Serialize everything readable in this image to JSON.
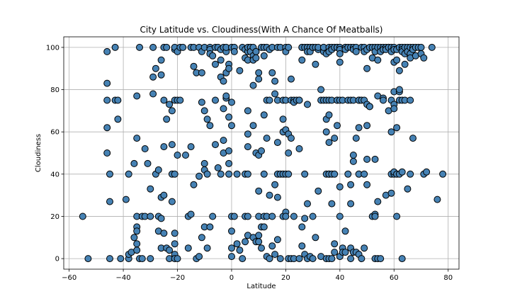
{
  "chart_data": {
    "type": "scatter",
    "title": "City Latitude vs. Cloudiness(With A Chance Of Meatballs)",
    "xlabel": "Latitude",
    "ylabel": "Cloudiness",
    "xlim": [
      -62,
      84
    ],
    "ylim": [
      -5,
      105
    ],
    "xticks": [
      -60,
      -40,
      -20,
      0,
      20,
      40,
      60,
      80
    ],
    "yticks": [
      0,
      20,
      40,
      60,
      80,
      100
    ],
    "grid": true,
    "marker_color": "#4682b4",
    "marker_edge_color": "#000000",
    "points": [
      [
        -55,
        20
      ],
      [
        -53,
        0
      ],
      [
        -46,
        75
      ],
      [
        -46,
        62
      ],
      [
        -46,
        50
      ],
      [
        -46,
        83
      ],
      [
        -46,
        98
      ],
      [
        -45,
        40
      ],
      [
        -45,
        27
      ],
      [
        -45,
        0
      ],
      [
        -43,
        75
      ],
      [
        -43,
        100
      ],
      [
        -42,
        75
      ],
      [
        -42,
        66
      ],
      [
        -41,
        0
      ],
      [
        -39,
        28
      ],
      [
        -38,
        40
      ],
      [
        -38,
        0
      ],
      [
        -38,
        2
      ],
      [
        -37,
        3
      ],
      [
        -36,
        45
      ],
      [
        -36,
        10
      ],
      [
        -35,
        77
      ],
      [
        -35,
        57
      ],
      [
        -35,
        20
      ],
      [
        -35,
        15
      ],
      [
        -35,
        13
      ],
      [
        -35,
        7
      ],
      [
        -35,
        4
      ],
      [
        -34,
        100
      ],
      [
        -34,
        0
      ],
      [
        -33,
        0
      ],
      [
        -33,
        20
      ],
      [
        -32,
        52
      ],
      [
        -32,
        20
      ],
      [
        -31,
        45
      ],
      [
        -30,
        0
      ],
      [
        -30,
        20
      ],
      [
        -30,
        33
      ],
      [
        -29,
        100
      ],
      [
        -29,
        78
      ],
      [
        -29,
        86
      ],
      [
        -28,
        90
      ],
      [
        -28,
        40
      ],
      [
        -27,
        20
      ],
      [
        -27,
        42
      ],
      [
        -27,
        13
      ],
      [
        -26,
        87
      ],
      [
        -26,
        94
      ],
      [
        -26,
        29
      ],
      [
        -26,
        19
      ],
      [
        -26,
        5
      ],
      [
        -25,
        100
      ],
      [
        -25,
        75
      ],
      [
        -25,
        53
      ],
      [
        -25,
        30
      ],
      [
        -25,
        12
      ],
      [
        -24,
        100
      ],
      [
        -24,
        66
      ],
      [
        -24,
        5
      ],
      [
        -23,
        73
      ],
      [
        -23,
        0
      ],
      [
        -23,
        4
      ],
      [
        -22,
        40
      ],
      [
        -22,
        70
      ],
      [
        -22,
        54
      ],
      [
        -22,
        27
      ],
      [
        -21,
        99
      ],
      [
        -21,
        75
      ],
      [
        -21,
        100
      ],
      [
        -21,
        40
      ],
      [
        -21,
        12
      ],
      [
        -21,
        7
      ],
      [
        -21,
        2
      ],
      [
        -21,
        0
      ],
      [
        -20,
        98
      ],
      [
        -20,
        75
      ],
      [
        -20,
        49
      ],
      [
        -20,
        0
      ],
      [
        -19,
        100
      ],
      [
        -19,
        75
      ],
      [
        -18,
        100
      ],
      [
        -17,
        49
      ],
      [
        -16,
        5
      ],
      [
        -16,
        20
      ],
      [
        -15,
        21
      ],
      [
        -15,
        53
      ],
      [
        -15,
        100
      ],
      [
        -14,
        91
      ],
      [
        -14,
        35
      ],
      [
        -14,
        100
      ],
      [
        -13,
        88
      ],
      [
        -13,
        0
      ],
      [
        -12,
        39
      ],
      [
        -12,
        1
      ],
      [
        -12,
        100
      ],
      [
        -11,
        98
      ],
      [
        -11,
        88
      ],
      [
        -11,
        10
      ],
      [
        -11,
        74
      ],
      [
        -10,
        100
      ],
      [
        -10,
        70
      ],
      [
        -10,
        45
      ],
      [
        -10,
        42
      ],
      [
        -10,
        15
      ],
      [
        -9,
        5
      ],
      [
        -9,
        66
      ],
      [
        -9,
        40
      ],
      [
        -8,
        100
      ],
      [
        -8,
        99
      ],
      [
        -8,
        97
      ],
      [
        -8,
        15
      ],
      [
        -8,
        63
      ],
      [
        -7,
        96
      ],
      [
        -7,
        20
      ],
      [
        -6,
        54
      ],
      [
        -6,
        75
      ],
      [
        -6,
        100
      ],
      [
        -6,
        92
      ],
      [
        -5,
        100
      ],
      [
        -5,
        43
      ],
      [
        -4,
        99
      ],
      [
        -4,
        86
      ],
      [
        -4,
        94
      ],
      [
        -4,
        40
      ],
      [
        -3,
        71
      ],
      [
        -3,
        100
      ],
      [
        -3,
        50
      ],
      [
        -3,
        84
      ],
      [
        -3,
        56
      ],
      [
        -2,
        88
      ],
      [
        -2,
        98
      ],
      [
        -2,
        76
      ],
      [
        -2,
        77
      ],
      [
        -2,
        100
      ],
      [
        -1,
        92
      ],
      [
        -1,
        90
      ],
      [
        -1,
        67
      ],
      [
        -1,
        45
      ],
      [
        -1,
        40
      ],
      [
        -1,
        51
      ],
      [
        0,
        20
      ],
      [
        0,
        13
      ],
      [
        0,
        5
      ],
      [
        0,
        74
      ],
      [
        0,
        63
      ],
      [
        0,
        1
      ],
      [
        0,
        100
      ],
      [
        1,
        100
      ],
      [
        1,
        98
      ],
      [
        1,
        20
      ],
      [
        2,
        7
      ],
      [
        2,
        40
      ],
      [
        3,
        89
      ],
      [
        3,
        4
      ],
      [
        4,
        0
      ],
      [
        4,
        100
      ],
      [
        5,
        99
      ],
      [
        5,
        95
      ],
      [
        5,
        40
      ],
      [
        5,
        20
      ],
      [
        5,
        8
      ],
      [
        6,
        98
      ],
      [
        6,
        100
      ],
      [
        6,
        94
      ],
      [
        6,
        70
      ],
      [
        6,
        59
      ],
      [
        6,
        53
      ],
      [
        6,
        40
      ],
      [
        6,
        20
      ],
      [
        6,
        11
      ],
      [
        7,
        100
      ],
      [
        7,
        100
      ],
      [
        7,
        98
      ],
      [
        8,
        100
      ],
      [
        8,
        82
      ],
      [
        8,
        63
      ],
      [
        8,
        96
      ],
      [
        8,
        94
      ],
      [
        8,
        10
      ],
      [
        9,
        98
      ],
      [
        9,
        98
      ],
      [
        9,
        95
      ],
      [
        9,
        8
      ],
      [
        9,
        50
      ],
      [
        10,
        85
      ],
      [
        10,
        88
      ],
      [
        10,
        32
      ],
      [
        10,
        20
      ],
      [
        10,
        11
      ],
      [
        10,
        8
      ],
      [
        10,
        49
      ],
      [
        11,
        100
      ],
      [
        11,
        5
      ],
      [
        11,
        15
      ],
      [
        11,
        51
      ],
      [
        12,
        96
      ],
      [
        12,
        100
      ],
      [
        12,
        68
      ],
      [
        12,
        40
      ],
      [
        12,
        20
      ],
      [
        12,
        15
      ],
      [
        13,
        100
      ],
      [
        13,
        75
      ],
      [
        13,
        57
      ],
      [
        13,
        20
      ],
      [
        13,
        1
      ],
      [
        14,
        99
      ],
      [
        14,
        75
      ],
      [
        14,
        30
      ],
      [
        14,
        0
      ],
      [
        15,
        100
      ],
      [
        15,
        88
      ],
      [
        15,
        20
      ],
      [
        15,
        6
      ],
      [
        16,
        84
      ],
      [
        16,
        78
      ],
      [
        16,
        35
      ],
      [
        16,
        2
      ],
      [
        17,
        100
      ],
      [
        17,
        55
      ],
      [
        17,
        75
      ],
      [
        17,
        40
      ],
      [
        17,
        29
      ],
      [
        17,
        9
      ],
      [
        18,
        100
      ],
      [
        18,
        0
      ],
      [
        18,
        40
      ],
      [
        19,
        75
      ],
      [
        19,
        66
      ],
      [
        19,
        60
      ],
      [
        19,
        40
      ],
      [
        19,
        20
      ],
      [
        20,
        100
      ],
      [
        20,
        98
      ],
      [
        20,
        75
      ],
      [
        20,
        61
      ],
      [
        20,
        40
      ],
      [
        20,
        22
      ],
      [
        20,
        20
      ],
      [
        21,
        59
      ],
      [
        21,
        50
      ],
      [
        21,
        40
      ],
      [
        21,
        0
      ],
      [
        21,
        100
      ],
      [
        22,
        85
      ],
      [
        22,
        57
      ],
      [
        22,
        75
      ],
      [
        22,
        0
      ],
      [
        23,
        75
      ],
      [
        23,
        74
      ],
      [
        23,
        0
      ],
      [
        23,
        20
      ],
      [
        24,
        75
      ],
      [
        25,
        75
      ],
      [
        25,
        75
      ],
      [
        25,
        52
      ],
      [
        25,
        0
      ],
      [
        26,
        100
      ],
      [
        26,
        100
      ],
      [
        26,
        94
      ],
      [
        26,
        15
      ],
      [
        26,
        6
      ],
      [
        27,
        100
      ],
      [
        27,
        19
      ],
      [
        27,
        2
      ],
      [
        27,
        40
      ],
      [
        28,
        100
      ],
      [
        28,
        100
      ],
      [
        28,
        98
      ],
      [
        28,
        73
      ],
      [
        28,
        26
      ],
      [
        28,
        0
      ],
      [
        29,
        100
      ],
      [
        29,
        98
      ],
      [
        29,
        1
      ],
      [
        30,
        100
      ],
      [
        30,
        100
      ],
      [
        30,
        20
      ],
      [
        30,
        0
      ],
      [
        31,
        100
      ],
      [
        31,
        92
      ],
      [
        31,
        10
      ],
      [
        32,
        99
      ],
      [
        32,
        32
      ],
      [
        32,
        100
      ],
      [
        33,
        80
      ],
      [
        33,
        75
      ],
      [
        33,
        1
      ],
      [
        34,
        100
      ],
      [
        34,
        98
      ],
      [
        34,
        100
      ],
      [
        34,
        75
      ],
      [
        35,
        97
      ],
      [
        35,
        75
      ],
      [
        35,
        66
      ],
      [
        35,
        60
      ],
      [
        35,
        40
      ],
      [
        35,
        0
      ],
      [
        36,
        100
      ],
      [
        36,
        98
      ],
      [
        36,
        75
      ],
      [
        36,
        68
      ],
      [
        36,
        55
      ],
      [
        36,
        40
      ],
      [
        36,
        40
      ],
      [
        36,
        0
      ],
      [
        37,
        100
      ],
      [
        37,
        99
      ],
      [
        37,
        75
      ],
      [
        37,
        40
      ],
      [
        37,
        26
      ],
      [
        37,
        0
      ],
      [
        38,
        100
      ],
      [
        38,
        57
      ],
      [
        38,
        40
      ],
      [
        38,
        7
      ],
      [
        38,
        3
      ],
      [
        39,
        100
      ],
      [
        39,
        75
      ],
      [
        39,
        100
      ],
      [
        39,
        75
      ],
      [
        39,
        63
      ],
      [
        40,
        100
      ],
      [
        40,
        99
      ],
      [
        40,
        97
      ],
      [
        40,
        93
      ],
      [
        40,
        75
      ],
      [
        40,
        34
      ],
      [
        40,
        20
      ],
      [
        40,
        1
      ],
      [
        41,
        75
      ],
      [
        41,
        5
      ],
      [
        41,
        3
      ],
      [
        42,
        100
      ],
      [
        42,
        100
      ],
      [
        42,
        99
      ],
      [
        42,
        13
      ],
      [
        42,
        3
      ],
      [
        43,
        75
      ],
      [
        43,
        40
      ],
      [
        43,
        100
      ],
      [
        44,
        100
      ],
      [
        44,
        75
      ],
      [
        44,
        35
      ],
      [
        44,
        26
      ],
      [
        44,
        5
      ],
      [
        44,
        0
      ],
      [
        45,
        100
      ],
      [
        45,
        99
      ],
      [
        45,
        75
      ],
      [
        45,
        46
      ],
      [
        45,
        49
      ],
      [
        45,
        3
      ],
      [
        46,
        100
      ],
      [
        46,
        98
      ],
      [
        46,
        57
      ],
      [
        46,
        3
      ],
      [
        47,
        75
      ],
      [
        47,
        75
      ],
      [
        47,
        62
      ],
      [
        47,
        40
      ],
      [
        47,
        2
      ],
      [
        48,
        100
      ],
      [
        48,
        75
      ],
      [
        48,
        0
      ],
      [
        49,
        75
      ],
      [
        49,
        100
      ],
      [
        49,
        98
      ],
      [
        49,
        40
      ],
      [
        49,
        5
      ],
      [
        50,
        99
      ],
      [
        50,
        90
      ],
      [
        50,
        73
      ],
      [
        50,
        63
      ],
      [
        50,
        35
      ],
      [
        50,
        47
      ],
      [
        51,
        100
      ],
      [
        51,
        72
      ],
      [
        51,
        72
      ],
      [
        52,
        95
      ],
      [
        52,
        100
      ],
      [
        52,
        20
      ],
      [
        53,
        100
      ],
      [
        53,
        98
      ],
      [
        53,
        47
      ],
      [
        53,
        21
      ],
      [
        53,
        20
      ],
      [
        53,
        0
      ],
      [
        54,
        100
      ],
      [
        54,
        94
      ],
      [
        54,
        77
      ],
      [
        54,
        27
      ],
      [
        54,
        0
      ],
      [
        55,
        100
      ],
      [
        55,
        98
      ],
      [
        55,
        0
      ],
      [
        56,
        100
      ],
      [
        56,
        99
      ],
      [
        56,
        76
      ],
      [
        56,
        75
      ],
      [
        57,
        100
      ],
      [
        57,
        99
      ],
      [
        57,
        30
      ],
      [
        58,
        100
      ],
      [
        58,
        70
      ],
      [
        58,
        100
      ],
      [
        59,
        100
      ],
      [
        59,
        98
      ],
      [
        59,
        75
      ],
      [
        59,
        60
      ],
      [
        59,
        40
      ],
      [
        59,
        31
      ],
      [
        60,
        100
      ],
      [
        60,
        99
      ],
      [
        60,
        93
      ],
      [
        60,
        79
      ],
      [
        60,
        73
      ],
      [
        60,
        71
      ],
      [
        60,
        40
      ],
      [
        60,
        41
      ],
      [
        61,
        99
      ],
      [
        61,
        94
      ],
      [
        61,
        62
      ],
      [
        61,
        40
      ],
      [
        61,
        20
      ],
      [
        62,
        100
      ],
      [
        62,
        89
      ],
      [
        62,
        79
      ],
      [
        62,
        75
      ],
      [
        62,
        80
      ],
      [
        62,
        40
      ],
      [
        63,
        100
      ],
      [
        63,
        99
      ],
      [
        63,
        98
      ],
      [
        63,
        75
      ],
      [
        63,
        41
      ],
      [
        63,
        0
      ],
      [
        64,
        100
      ],
      [
        64,
        97
      ],
      [
        64,
        92
      ],
      [
        64,
        75
      ],
      [
        65,
        100
      ],
      [
        65,
        98
      ],
      [
        65,
        33
      ],
      [
        66,
        100
      ],
      [
        66,
        97
      ],
      [
        66,
        95
      ],
      [
        66,
        75
      ],
      [
        66,
        40
      ],
      [
        67,
        100
      ],
      [
        67,
        99
      ],
      [
        67,
        57
      ],
      [
        68,
        100
      ],
      [
        68,
        96
      ],
      [
        69,
        100
      ],
      [
        70,
        97
      ],
      [
        70,
        100
      ],
      [
        71,
        95
      ],
      [
        71,
        40
      ],
      [
        72,
        41
      ],
      [
        74,
        100
      ],
      [
        76,
        28
      ],
      [
        78,
        40
      ]
    ]
  }
}
